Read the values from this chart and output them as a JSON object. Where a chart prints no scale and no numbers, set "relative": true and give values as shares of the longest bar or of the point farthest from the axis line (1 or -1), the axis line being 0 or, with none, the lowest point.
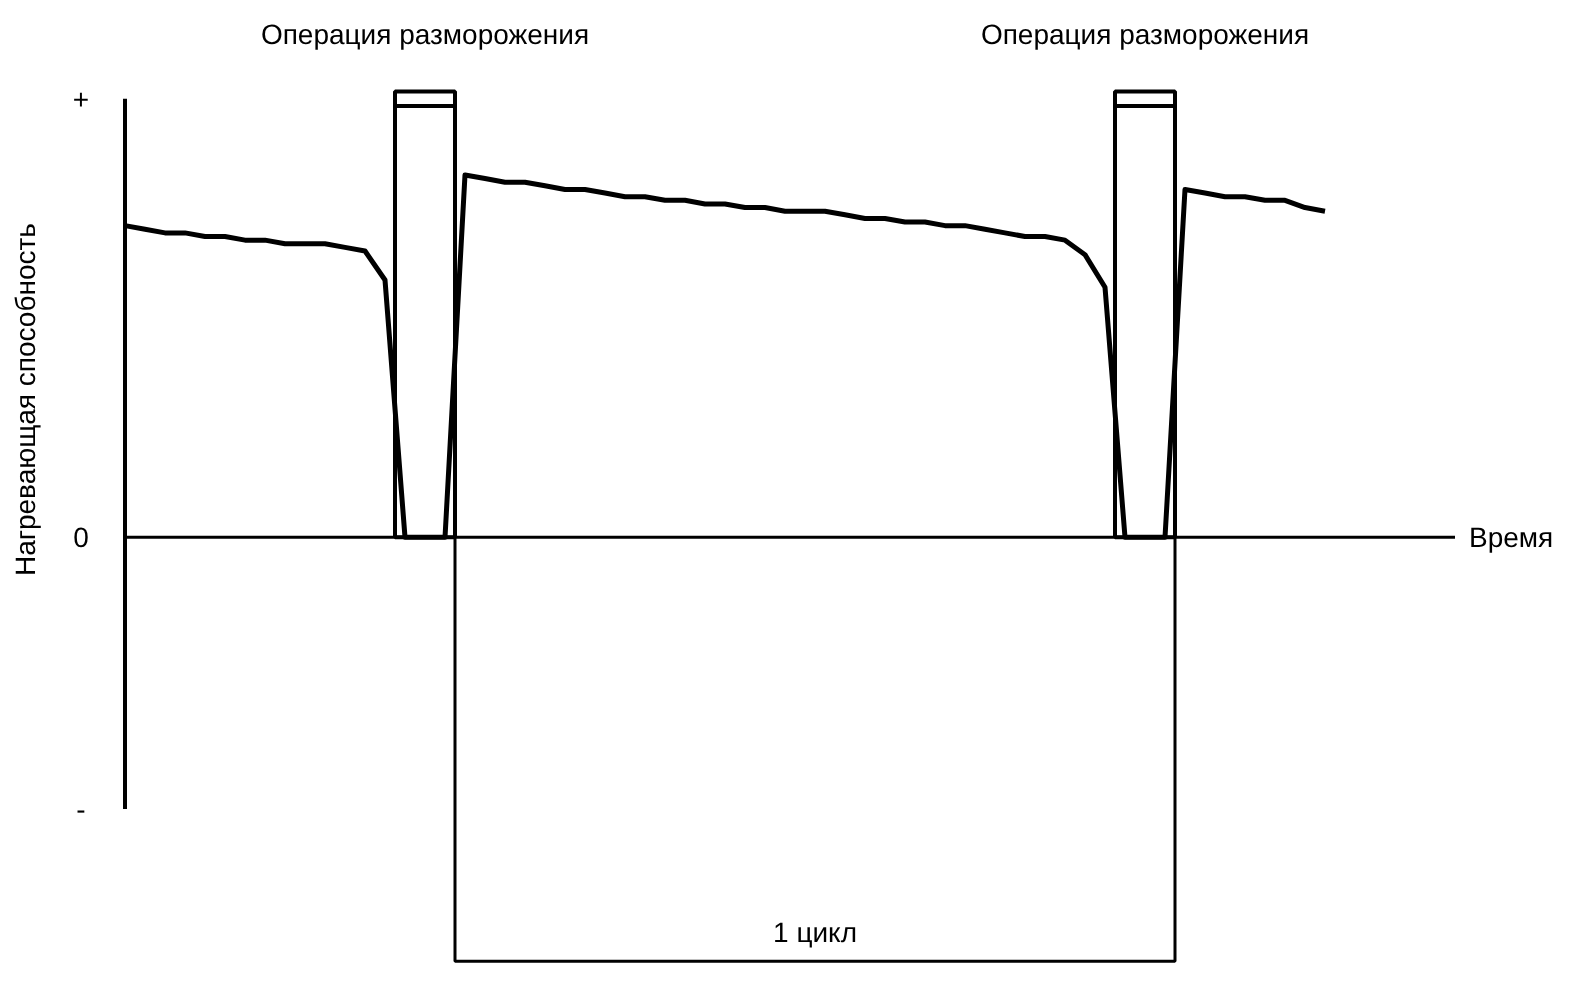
{
  "chart_data": {
    "type": "line",
    "relative": true,
    "xlabel": "Время",
    "ylabel": "Нагревающая способность",
    "categories": [
      null,
      null,
      null,
      null,
      null,
      null,
      null,
      null,
      null,
      null,
      null,
      null,
      null,
      null,
      null,
      null,
      null,
      null,
      null,
      null,
      null,
      null,
      null,
      null,
      null,
      null,
      null,
      null,
      null,
      null,
      null,
      null,
      null,
      null,
      null,
      null,
      null,
      null,
      null,
      null,
      null,
      null,
      null,
      null,
      null,
      null,
      null,
      null,
      null,
      null,
      null,
      null,
      null,
      null,
      null,
      null,
      null,
      null,
      null,
      null,
      null
    ],
    "series": [
      {
        "color": "#000000",
        "values": [
          0.86,
          0.85,
          0.84,
          0.84,
          0.83,
          0.83,
          0.82,
          0.82,
          0.81,
          0.81,
          0.81,
          0.8,
          0.79,
          0.71,
          0,
          0,
          0,
          1.0,
          0.99,
          0.98,
          0.98,
          0.97,
          0.96,
          0.96,
          0.95,
          0.94,
          0.94,
          0.93,
          0.93,
          0.92,
          0.92,
          0.91,
          0.91,
          0.9,
          0.9,
          0.9,
          0.89,
          0.88,
          0.88,
          0.87,
          0.87,
          0.86,
          0.86,
          0.85,
          0.84,
          0.83,
          0.83,
          0.82,
          0.78,
          0.69,
          0,
          0,
          0,
          0.96,
          0.95,
          0.94,
          0.94,
          0.93,
          0.93,
          0.91,
          0.9
        ]
      }
    ],
    "annotations": [
      "Операция разморожения",
      "Операция разморожения",
      "1 цикл",
      "+",
      "0",
      "-"
    ],
    "marker": "none",
    "grid": false
  }
}
